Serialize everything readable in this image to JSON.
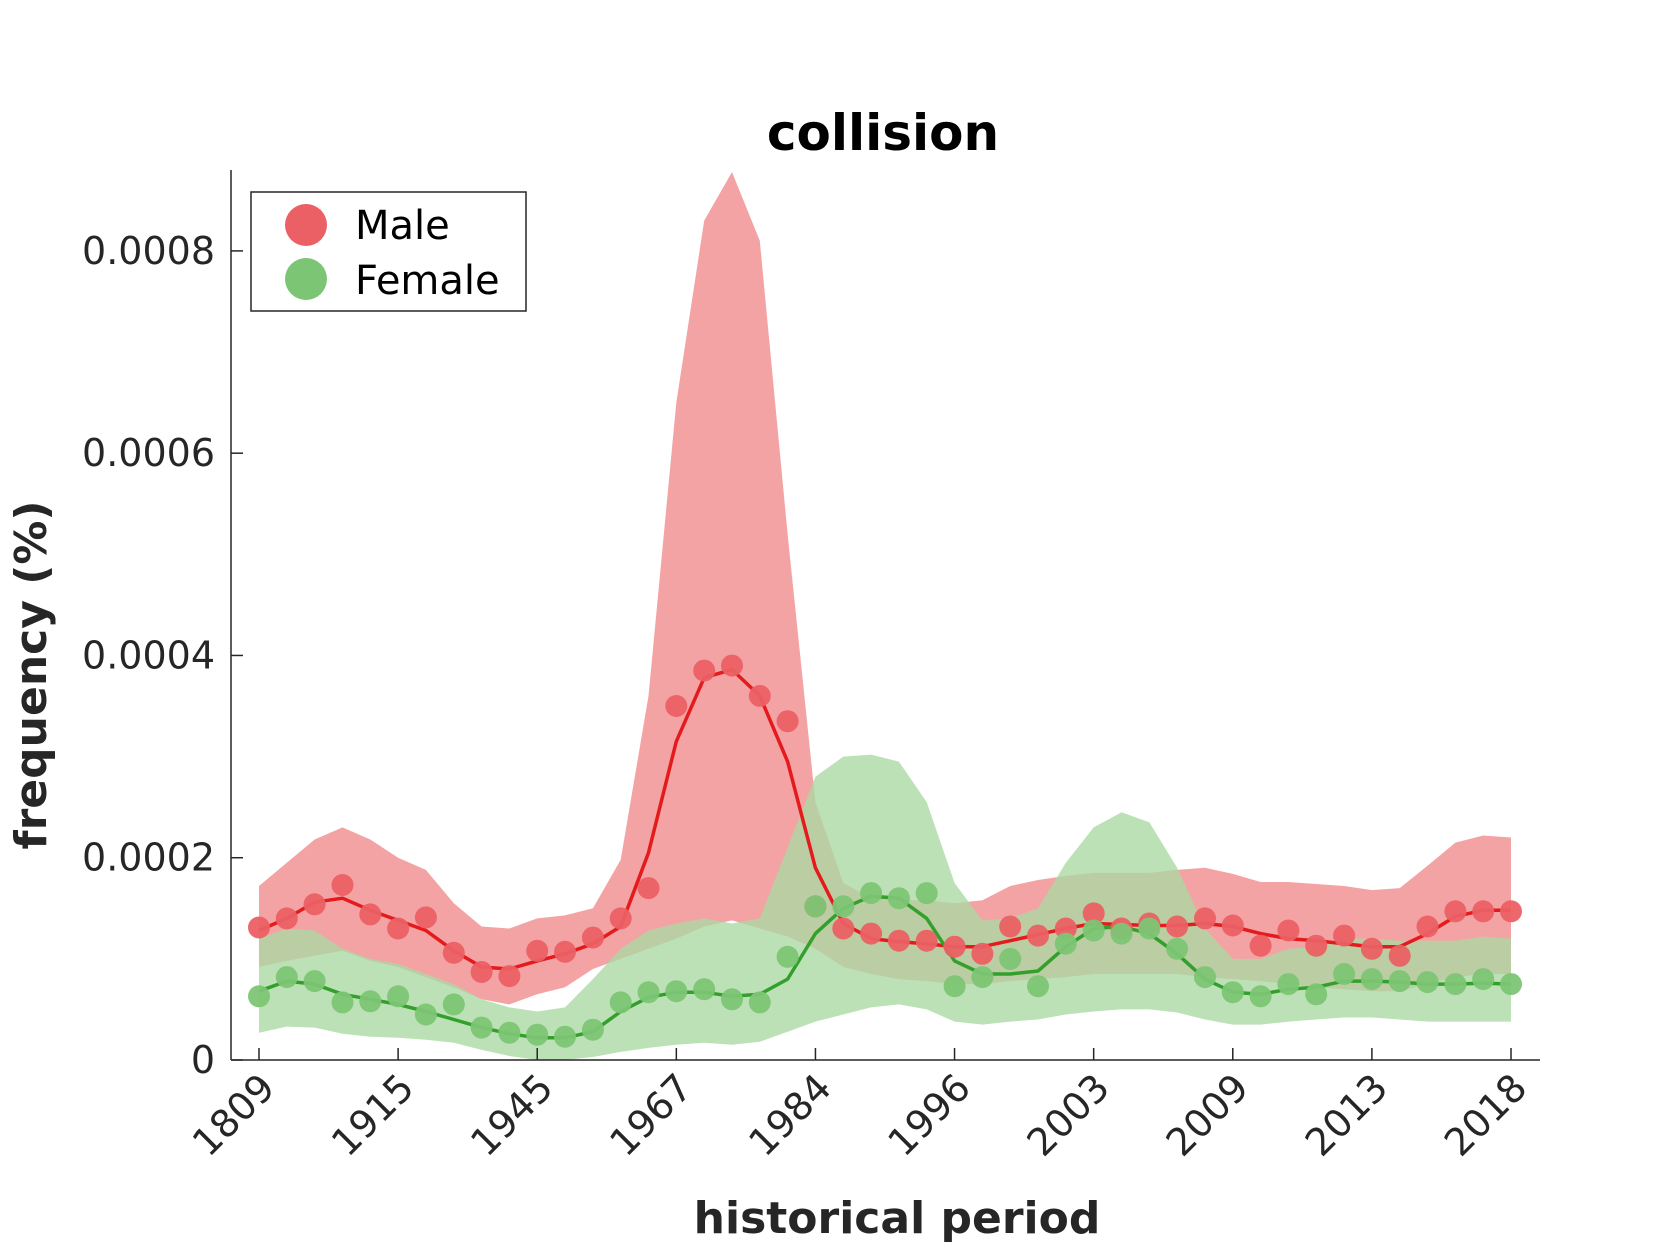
{
  "chart_data": {
    "type": "line",
    "title": "collision",
    "xlabel": "historical period",
    "ylabel": "frequency (%)",
    "ylim": [
      0,
      0.00088
    ],
    "yticks": [
      0,
      0.0002,
      0.0004,
      0.0006,
      0.0008
    ],
    "ytick_labels": [
      "0",
      "0.0002",
      "0.0004",
      "0.0006",
      "0.0008"
    ],
    "xtick_labels": [
      "1809",
      "1915",
      "1945",
      "1967",
      "1984",
      "1996",
      "2003",
      "2009",
      "2013",
      "2018"
    ],
    "xtick_every": 5,
    "n_points": 46,
    "legend": {
      "placement": "top-left"
    },
    "series": [
      {
        "name": "Male",
        "color": "#e41a1c",
        "point_color": "#eb6064",
        "band_color": "#f4a3a5",
        "points": [
          0.000131,
          0.00014,
          0.000154,
          0.000173,
          0.000144,
          0.00013,
          0.000141,
          0.000106,
          8.7e-05,
          8.3e-05,
          0.000108,
          0.000107,
          0.000121,
          0.00014,
          0.00017,
          0.00035,
          0.000385,
          0.00039,
          0.00036,
          0.000335,
          0.000152,
          0.00013,
          0.000125,
          0.000118,
          0.000118,
          0.000112,
          0.000105,
          0.000132,
          0.000123,
          0.00013,
          0.000145,
          0.00013,
          0.000135,
          0.000132,
          0.00014,
          0.000133,
          0.000113,
          0.000128,
          0.000113,
          0.000123,
          0.00011,
          0.000103,
          0.000132,
          0.000147,
          0.000147,
          0.000147
        ],
        "line": [
          0.000128,
          0.00014,
          0.000156,
          0.00016,
          0.000148,
          0.000138,
          0.000128,
          0.000108,
          9.2e-05,
          9e-05,
          9.8e-05,
          0.000105,
          0.000115,
          0.000132,
          0.000205,
          0.000315,
          0.000378,
          0.000386,
          0.00036,
          0.000295,
          0.00019,
          0.000135,
          0.00012,
          0.000117,
          0.000115,
          0.000112,
          0.000112,
          0.000118,
          0.000124,
          0.00013,
          0.000135,
          0.000134,
          0.000133,
          0.000133,
          0.000135,
          0.000132,
          0.000125,
          0.00012,
          0.000118,
          0.000115,
          0.000112,
          0.000112,
          0.000125,
          0.000142,
          0.000148,
          0.000148
        ],
        "upper": [
          0.000172,
          0.000195,
          0.000218,
          0.00023,
          0.000218,
          0.0002,
          0.000188,
          0.000155,
          0.000132,
          0.00013,
          0.00014,
          0.000143,
          0.00015,
          0.000198,
          0.00036,
          0.00065,
          0.00083,
          0.000878,
          0.00081,
          0.00052,
          0.000255,
          0.000175,
          0.00016,
          0.000158,
          0.000158,
          0.000155,
          0.000158,
          0.000172,
          0.000178,
          0.000182,
          0.000185,
          0.000185,
          0.000185,
          0.000188,
          0.00019,
          0.000184,
          0.000176,
          0.000176,
          0.000174,
          0.000172,
          0.000168,
          0.00017,
          0.000192,
          0.000215,
          0.000222,
          0.00022
        ],
        "lower": [
          9.2e-05,
          9.8e-05,
          0.000103,
          0.000108,
          9.8e-05,
          9.2e-05,
          8.2e-05,
          7.2e-05,
          6e-05,
          5.5e-05,
          6.5e-05,
          7.2e-05,
          9e-05,
          0.0001,
          0.00011,
          0.00012,
          0.000132,
          0.000138,
          0.00013,
          0.000122,
          0.00011,
          9.2e-05,
          8.5e-05,
          8e-05,
          7.8e-05,
          7.5e-05,
          7.5e-05,
          7.8e-05,
          8e-05,
          8.2e-05,
          8.5e-05,
          8.5e-05,
          8.5e-05,
          8.5e-05,
          8.2e-05,
          8e-05,
          7.8e-05,
          7.5e-05,
          7.2e-05,
          7e-05,
          6.8e-05,
          6.8e-05,
          7.5e-05,
          8.2e-05,
          8.5e-05,
          8.5e-05
        ]
      },
      {
        "name": "Female",
        "color": "#33a02c",
        "point_color": "#7cc574",
        "band_color": "#abd8a3",
        "points": [
          6.3e-05,
          8.2e-05,
          7.8e-05,
          5.7e-05,
          5.8e-05,
          6.3e-05,
          4.5e-05,
          5.5e-05,
          3.2e-05,
          2.7e-05,
          2.5e-05,
          2.3e-05,
          3e-05,
          5.7e-05,
          6.7e-05,
          6.8e-05,
          7e-05,
          6e-05,
          5.7e-05,
          0.000102,
          0.000152,
          0.000152,
          0.000165,
          0.00016,
          0.000165,
          7.3e-05,
          8.2e-05,
          0.0001,
          7.3e-05,
          0.000115,
          0.000128,
          0.000125,
          0.00013,
          0.00011,
          8.2e-05,
          6.7e-05,
          6.3e-05,
          7.5e-05,
          6.5e-05,
          8.5e-05,
          8e-05,
          7.8e-05,
          7.7e-05,
          7.5e-05,
          8e-05,
          7.5e-05
        ],
        "line": [
          6.8e-05,
          7.8e-05,
          7.5e-05,
          6.5e-05,
          6e-05,
          5.5e-05,
          4.8e-05,
          4e-05,
          3.2e-05,
          2.6e-05,
          2.2e-05,
          2.2e-05,
          2.8e-05,
          4.8e-05,
          6.2e-05,
          6.7e-05,
          6.7e-05,
          6.3e-05,
          6.5e-05,
          8e-05,
          0.000125,
          0.00015,
          0.000162,
          0.00016,
          0.00014,
          9.8e-05,
          8.5e-05,
          8.5e-05,
          8.8e-05,
          0.000112,
          0.00013,
          0.000132,
          0.000125,
          0.000105,
          8e-05,
          6.7e-05,
          6.5e-05,
          7e-05,
          7.2e-05,
          7.8e-05,
          7.8e-05,
          7.7e-05,
          7.5e-05,
          7.5e-05,
          7.6e-05,
          7.5e-05
        ],
        "upper": [
          0.00012,
          0.00013,
          0.000128,
          0.00011,
          0.0001,
          9.5e-05,
          8.5e-05,
          7.5e-05,
          6e-05,
          5.2e-05,
          4.8e-05,
          5.2e-05,
          8e-05,
          0.00011,
          0.000128,
          0.000135,
          0.00014,
          0.000135,
          0.00014,
          0.00021,
          0.00028,
          0.0003,
          0.000302,
          0.000295,
          0.000255,
          0.000175,
          0.000138,
          0.00014,
          0.00015,
          0.000195,
          0.00023,
          0.000245,
          0.000235,
          0.00019,
          0.00013,
          0.0001,
          0.0001,
          0.00011,
          0.000112,
          0.00012,
          0.00012,
          0.000118,
          0.000118,
          0.000118,
          0.000122,
          0.00012
        ],
        "lower": [
          2.7e-05,
          3.3e-05,
          3.2e-05,
          2.6e-05,
          2.3e-05,
          2.2e-05,
          2e-05,
          1.7e-05,
          1e-05,
          4e-06,
          0.0,
          0.0,
          3e-06,
          8e-06,
          1.2e-05,
          1.5e-05,
          1.7e-05,
          1.5e-05,
          1.8e-05,
          2.8e-05,
          3.8e-05,
          4.5e-05,
          5.2e-05,
          5.5e-05,
          5e-05,
          3.8e-05,
          3.5e-05,
          3.8e-05,
          4e-05,
          4.5e-05,
          4.8e-05,
          5e-05,
          5e-05,
          4.7e-05,
          4e-05,
          3.5e-05,
          3.5e-05,
          3.8e-05,
          4e-05,
          4.2e-05,
          4.2e-05,
          4e-05,
          3.8e-05,
          3.8e-05,
          3.8e-05,
          3.8e-05
        ]
      }
    ]
  }
}
